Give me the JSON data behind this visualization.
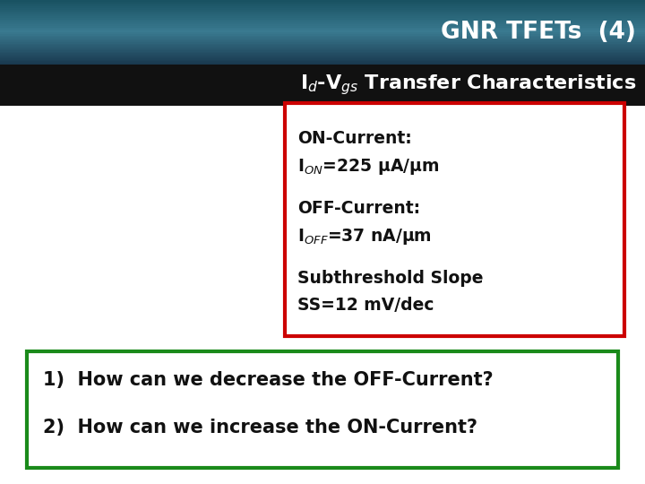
{
  "title": "GNR TFETs  (4)",
  "header_bg_color": "#2e6a80",
  "subtitle_bg_color": "#1a1a1a",
  "body_bg_color": "#f0f4f7",
  "red_box_lines": [
    "ON-Current:",
    "I$_{ON}$=225 μA/μm",
    "",
    "OFF-Current:",
    "I$_{OFF}$=37 nA/μm",
    "",
    "Subthreshold Slope",
    "SS=12 mV/dec"
  ],
  "green_box_lines": [
    "1)  How can we decrease the OFF-Current?",
    "2)  How can we increase the ON-Current?"
  ],
  "title_color": "#ffffff",
  "subtitle_color": "#ffffff",
  "red_box_color": "#cc0000",
  "green_box_color": "#1a8a1a",
  "body_text_color": "#111111"
}
